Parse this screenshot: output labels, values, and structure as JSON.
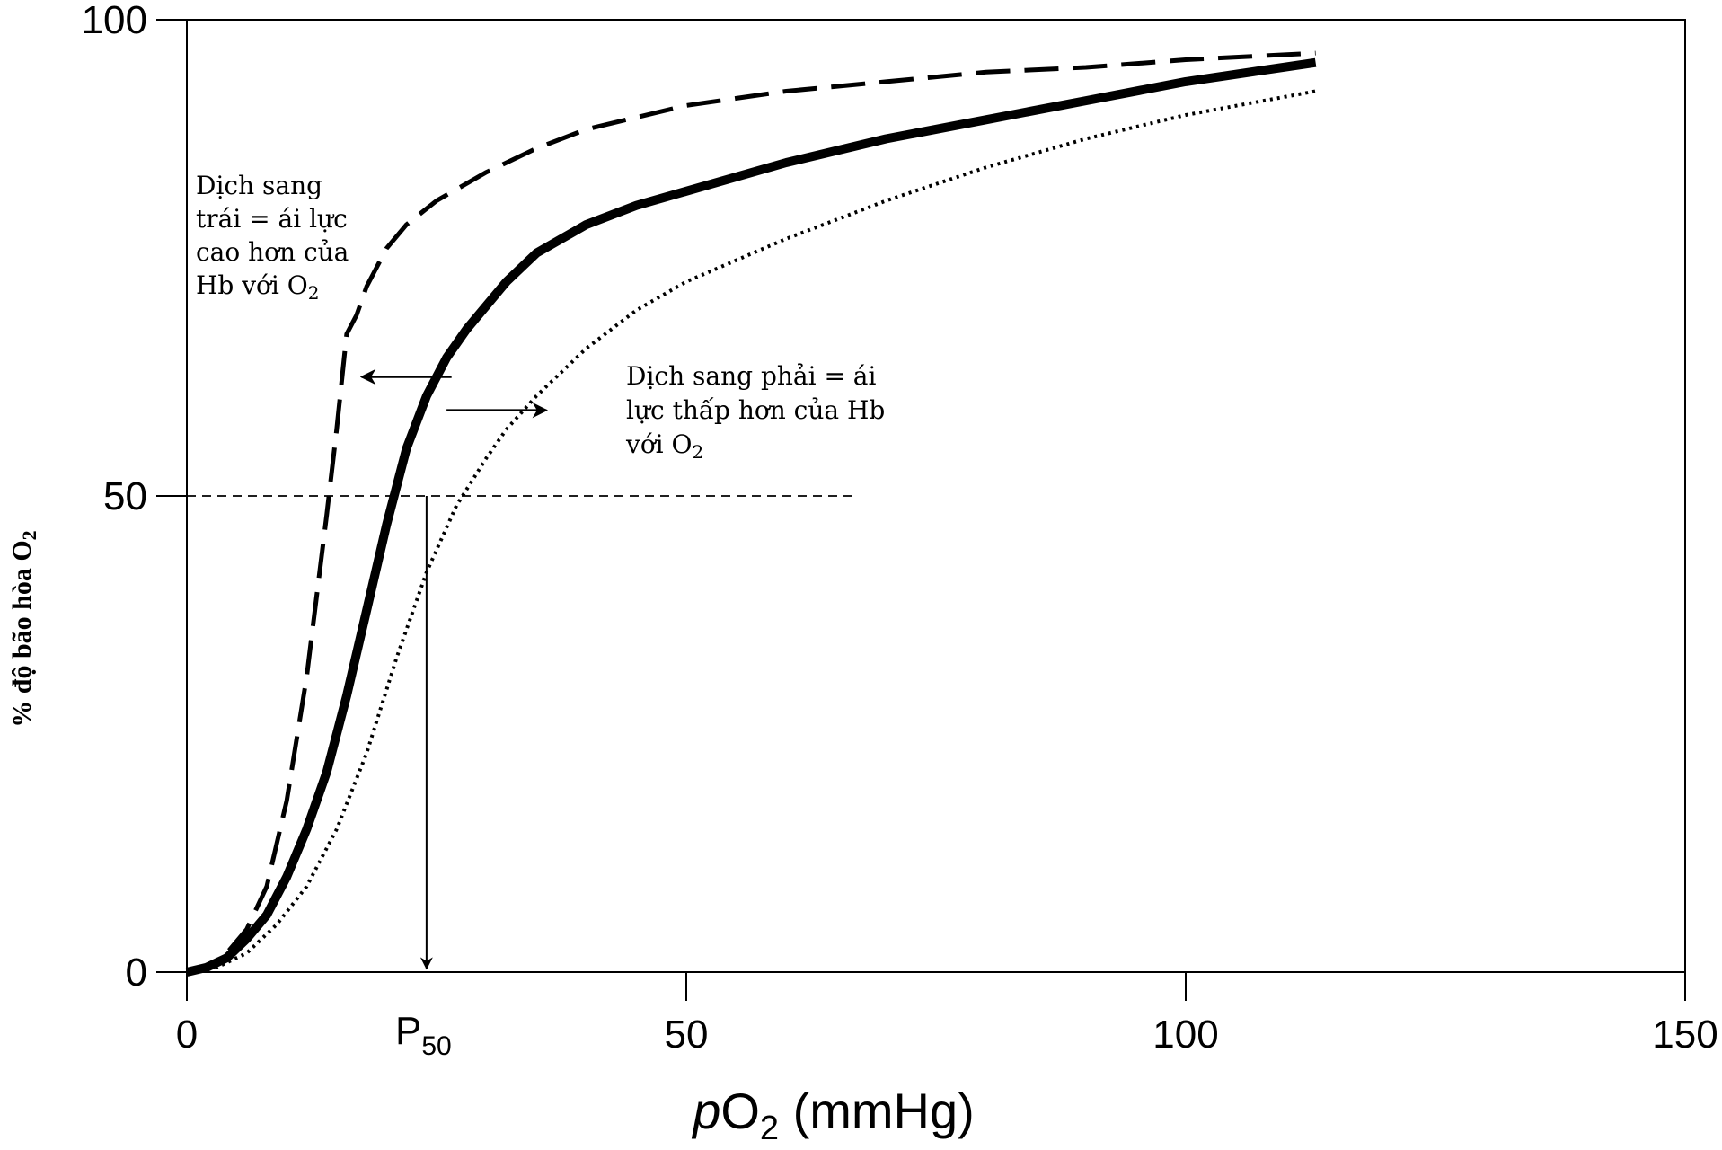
{
  "chart_data": {
    "type": "line",
    "xlabel_italic": "p",
    "xlabel_main": "O",
    "xlabel_sub": "2",
    "xlabel_rest": " (mmHg)",
    "ylabel": "% độ bão hòa O",
    "ylabel_sub": "2",
    "xlim": [
      0,
      150
    ],
    "ylim": [
      0,
      100
    ],
    "x_ticks": [
      0,
      50,
      100,
      150
    ],
    "x_tick_labels": [
      "0",
      "50",
      "100",
      "150"
    ],
    "y_ticks": [
      0,
      50,
      100
    ],
    "y_tick_labels": [
      "0",
      "50",
      "100"
    ],
    "grid": false,
    "series": [
      {
        "style": "dashed",
        "color": "#000000",
        "x": [
          0,
          2,
          4,
          6,
          8,
          10,
          12,
          14,
          15,
          16,
          17,
          17.5,
          18,
          19,
          20,
          22,
          25,
          30,
          35,
          40,
          50,
          60,
          70,
          80,
          90,
          100,
          113
        ],
        "y": [
          0,
          0.5,
          2,
          4.5,
          9,
          18,
          31,
          48,
          57,
          67,
          69,
          70.5,
          72,
          74,
          76,
          78.5,
          81,
          84,
          86.5,
          88.5,
          91,
          92.5,
          93.5,
          94.5,
          95,
          95.8,
          96.5
        ]
      },
      {
        "style": "solid",
        "color": "#000000",
        "x": [
          0,
          2,
          4,
          6,
          8,
          10,
          12,
          14,
          16,
          18,
          20,
          22,
          24,
          26,
          28,
          30,
          32,
          35,
          40,
          45,
          50,
          60,
          70,
          80,
          90,
          100,
          113
        ],
        "y": [
          0,
          0.5,
          1.5,
          3.5,
          6,
          10,
          15,
          21,
          29,
          38,
          47,
          55,
          60.5,
          64.5,
          67.5,
          70,
          72.5,
          75.5,
          78.5,
          80.5,
          82,
          85,
          87.5,
          89.5,
          91.5,
          93.5,
          95.5
        ]
      },
      {
        "style": "dotted",
        "color": "#000000",
        "x": [
          0,
          3,
          6,
          9,
          12,
          15,
          18,
          21,
          24,
          27,
          30,
          32,
          35,
          40,
          45,
          50,
          60,
          70,
          80,
          90,
          100,
          113
        ],
        "y": [
          0,
          0.5,
          2,
          5,
          9,
          15,
          23,
          33,
          42,
          49,
          54,
          57,
          60.5,
          65.5,
          69.5,
          72.5,
          77,
          81,
          84.5,
          87.5,
          90,
          92.5
        ]
      }
    ],
    "reference_line": {
      "y": 50,
      "x_start": -3,
      "x_end": 67
    },
    "p50": {
      "x": 24,
      "label_main": "P",
      "label_sub": "50"
    },
    "annotations": {
      "left_lines": [
        "Dịch sang",
        "trái = ái lực",
        "cao hơn của",
        "Hb với O"
      ],
      "left_sub": "2",
      "right_lines": [
        "Dịch sang phải = ái",
        "lực thấp hơn của Hb",
        "với O"
      ],
      "right_sub": "2"
    },
    "shift_arrows": [
      {
        "y": 62.5,
        "x_from": 26.5,
        "x_to": 17.5
      },
      {
        "y": 59,
        "x_from": 26,
        "x_to": 36
      }
    ]
  }
}
